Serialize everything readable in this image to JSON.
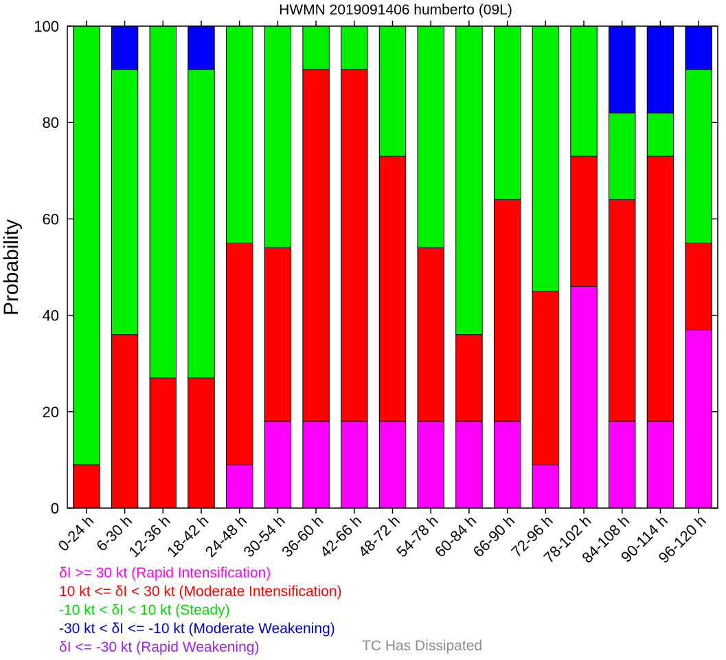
{
  "chart_data": {
    "type": "bar",
    "stacked": true,
    "title": "HWMN 2019091406 humberto (09L)",
    "ylabel": "Probability",
    "xlabel": "",
    "ylim": [
      0,
      100
    ],
    "yticks": [
      0,
      20,
      40,
      60,
      80,
      100
    ],
    "categories": [
      "0-24 h",
      "6-30 h",
      "12-36 h",
      "18-42 h",
      "24-48 h",
      "30-54 h",
      "36-60 h",
      "42-66 h",
      "48-72 h",
      "54-78 h",
      "60-84 h",
      "66-90 h",
      "72-96 h",
      "78-102 h",
      "84-108 h",
      "90-114 h",
      "96-120 h"
    ],
    "series": [
      {
        "name": "Rapid Intensification",
        "color": "#ff00ff",
        "values": [
          0,
          0,
          0,
          0,
          9,
          18,
          18,
          18,
          18,
          18,
          18,
          18,
          9,
          46,
          18,
          18,
          37
        ]
      },
      {
        "name": "Moderate Intensification",
        "color": "#ff0000",
        "values": [
          9,
          36,
          27,
          27,
          46,
          36,
          73,
          73,
          55,
          36,
          18,
          46,
          36,
          27,
          46,
          55,
          18
        ]
      },
      {
        "name": "Steady",
        "color": "#00ee00",
        "values": [
          91,
          55,
          73,
          64,
          45,
          46,
          9,
          9,
          27,
          46,
          64,
          36,
          55,
          27,
          18,
          9,
          36
        ]
      },
      {
        "name": "Moderate Weakening",
        "color": "#0000ff",
        "values": [
          0,
          9,
          0,
          9,
          0,
          0,
          0,
          0,
          0,
          0,
          0,
          0,
          0,
          0,
          18,
          18,
          9
        ]
      },
      {
        "name": "Rapid Weakening",
        "color": "#a020f0",
        "values": [
          0,
          0,
          0,
          0,
          0,
          0,
          0,
          0,
          0,
          0,
          0,
          0,
          0,
          0,
          0,
          0,
          0
        ]
      }
    ]
  },
  "legend": {
    "items": [
      {
        "text": "δI >= 30 kt (Rapid Intensification)",
        "color": "#ff00ff"
      },
      {
        "text": "10 kt <= δI < 30 kt (Moderate Intensification)",
        "color": "#ff0000"
      },
      {
        "text": "-10 kt < δI < 10 kt (Steady)",
        "color": "#00dd00"
      },
      {
        "text": "-30 kt < δI <= -10 kt (Moderate Weakening)",
        "color": "#0000cc"
      },
      {
        "text": "δI <= -30 kt (Rapid Weakening)",
        "color": "#a020f0"
      }
    ],
    "dissipated": {
      "text": "TC Has Dissipated",
      "color": "#8c8c8c"
    }
  }
}
